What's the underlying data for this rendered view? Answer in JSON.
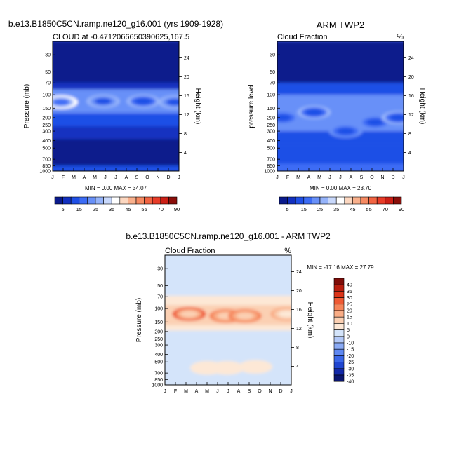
{
  "chart_data": [
    {
      "type": "heatmap",
      "title": "b.e13.B1850C5CN.ramp.ne120_g16.001 (yrs 1909-1928)",
      "subtitle_left": "CLOUD at -0.4712066650390625,167.5",
      "subtitle_right": "",
      "ylabel": "Pressure (mb)",
      "ylabel_right": "Height (km)",
      "x_ticks": [
        "J",
        "F",
        "M",
        "A",
        "M",
        "J",
        "J",
        "A",
        "S",
        "O",
        "N",
        "D",
        "J"
      ],
      "y_ticks": [
        "30",
        "50",
        "70",
        "100",
        "150",
        "200",
        "250",
        "300",
        "400",
        "500",
        "700",
        "850",
        "1000"
      ],
      "y_ticks_right": [
        "24",
        "20",
        "16",
        "12",
        "8",
        "4"
      ],
      "stats": "MIN =   0.00 MAX =  34.07",
      "levels": [
        "5",
        "15",
        "25",
        "35",
        "45",
        "55",
        "70",
        "90"
      ],
      "bands": [
        {
          "ptop": 20,
          "pbot": 70,
          "value": 1
        },
        {
          "ptop": 70,
          "pbot": 85,
          "value": 5
        },
        {
          "ptop": 85,
          "pbot": 175,
          "value": 18
        },
        {
          "ptop": 175,
          "pbot": 260,
          "value": 8
        },
        {
          "ptop": 260,
          "pbot": 380,
          "value": 4
        },
        {
          "ptop": 380,
          "pbot": 850,
          "value": 1
        },
        {
          "ptop": 850,
          "pbot": 1000,
          "value": 7
        }
      ],
      "cores": [
        {
          "month": 0.8,
          "p": 125,
          "value": 33
        },
        {
          "month": 4.8,
          "p": 122,
          "value": 24
        },
        {
          "month": 8.6,
          "p": 122,
          "value": 22
        },
        {
          "month": 11.6,
          "p": 125,
          "value": 24
        }
      ]
    },
    {
      "type": "heatmap",
      "title": "ARM TWP2",
      "subtitle_left": "Cloud Fraction",
      "subtitle_right": "%",
      "ylabel": "pressure level",
      "ylabel_right": "Height (km)",
      "x_ticks": [
        "J",
        "F",
        "M",
        "A",
        "M",
        "J",
        "J",
        "A",
        "S",
        "O",
        "N",
        "D",
        "J"
      ],
      "y_ticks": [
        "30",
        "50",
        "70",
        "100",
        "150",
        "200",
        "250",
        "300",
        "400",
        "500",
        "700",
        "850",
        "1000"
      ],
      "y_ticks_right": [
        "24",
        "20",
        "16",
        "12",
        "8",
        "4"
      ],
      "stats": "MIN =   0.00 MAX =  23.70",
      "levels": [
        "5",
        "15",
        "25",
        "35",
        "45",
        "55",
        "70",
        "90"
      ],
      "bands": [
        {
          "ptop": 20,
          "pbot": 70,
          "value": 1
        },
        {
          "ptop": 70,
          "pbot": 100,
          "value": 6
        },
        {
          "ptop": 100,
          "pbot": 300,
          "value": 16
        },
        {
          "ptop": 300,
          "pbot": 450,
          "value": 10
        },
        {
          "ptop": 450,
          "pbot": 800,
          "value": 6
        },
        {
          "ptop": 800,
          "pbot": 1000,
          "value": 12
        }
      ],
      "cores": [
        {
          "month": 0.5,
          "p": 200,
          "value": 20
        },
        {
          "month": 3.5,
          "p": 170,
          "value": 21
        },
        {
          "month": 6.5,
          "p": 300,
          "value": 19
        },
        {
          "month": 9.3,
          "p": 230,
          "value": 20
        },
        {
          "month": 11.5,
          "p": 200,
          "value": 21
        }
      ]
    },
    {
      "type": "heatmap",
      "title": "b.e13.B1850C5CN.ramp.ne120_g16.001 - ARM TWP2",
      "subtitle_left": "Cloud Fraction",
      "subtitle_right": "%",
      "ylabel": "Pressure (mb)",
      "ylabel_right": "Height (km)",
      "x_ticks": [
        "J",
        "F",
        "M",
        "A",
        "M",
        "J",
        "J",
        "A",
        "S",
        "O",
        "N",
        "D",
        "J"
      ],
      "y_ticks": [
        "30",
        "50",
        "70",
        "100",
        "150",
        "200",
        "250",
        "300",
        "400",
        "500",
        "700",
        "850",
        "1000"
      ],
      "y_ticks_right": [
        "24",
        "20",
        "16",
        "12",
        "8",
        "4"
      ],
      "stats": "MIN = -17.16 MAX =  27.79",
      "levels": [
        "40",
        "35",
        "30",
        "25",
        "20",
        "15",
        "10",
        "5",
        "0",
        "-10",
        "-15",
        "-20",
        "-25",
        "-30",
        "-35",
        "-40"
      ],
      "bands": [
        {
          "ptop": 20,
          "pbot": 68,
          "value": -3
        },
        {
          "ptop": 68,
          "pbot": 90,
          "value": 2
        },
        {
          "ptop": 90,
          "pbot": 165,
          "value": 7
        },
        {
          "ptop": 165,
          "pbot": 195,
          "value": 2
        },
        {
          "ptop": 195,
          "pbot": 1000,
          "value": -3
        }
      ],
      "cores": [
        {
          "month": 2.3,
          "p": 118,
          "value": 22
        },
        {
          "month": 5.8,
          "p": 125,
          "value": 18
        },
        {
          "month": 7.6,
          "p": 125,
          "value": 18
        },
        {
          "month": 11.6,
          "p": 118,
          "value": 15
        },
        {
          "month": 4.0,
          "p": 600,
          "value": 3
        },
        {
          "month": 5.9,
          "p": 600,
          "value": 3
        },
        {
          "month": 8.6,
          "p": 580,
          "value": 3
        },
        {
          "month": 0.9,
          "p": 330,
          "value": -8
        },
        {
          "month": 11.8,
          "p": 340,
          "value": -8
        }
      ]
    }
  ]
}
